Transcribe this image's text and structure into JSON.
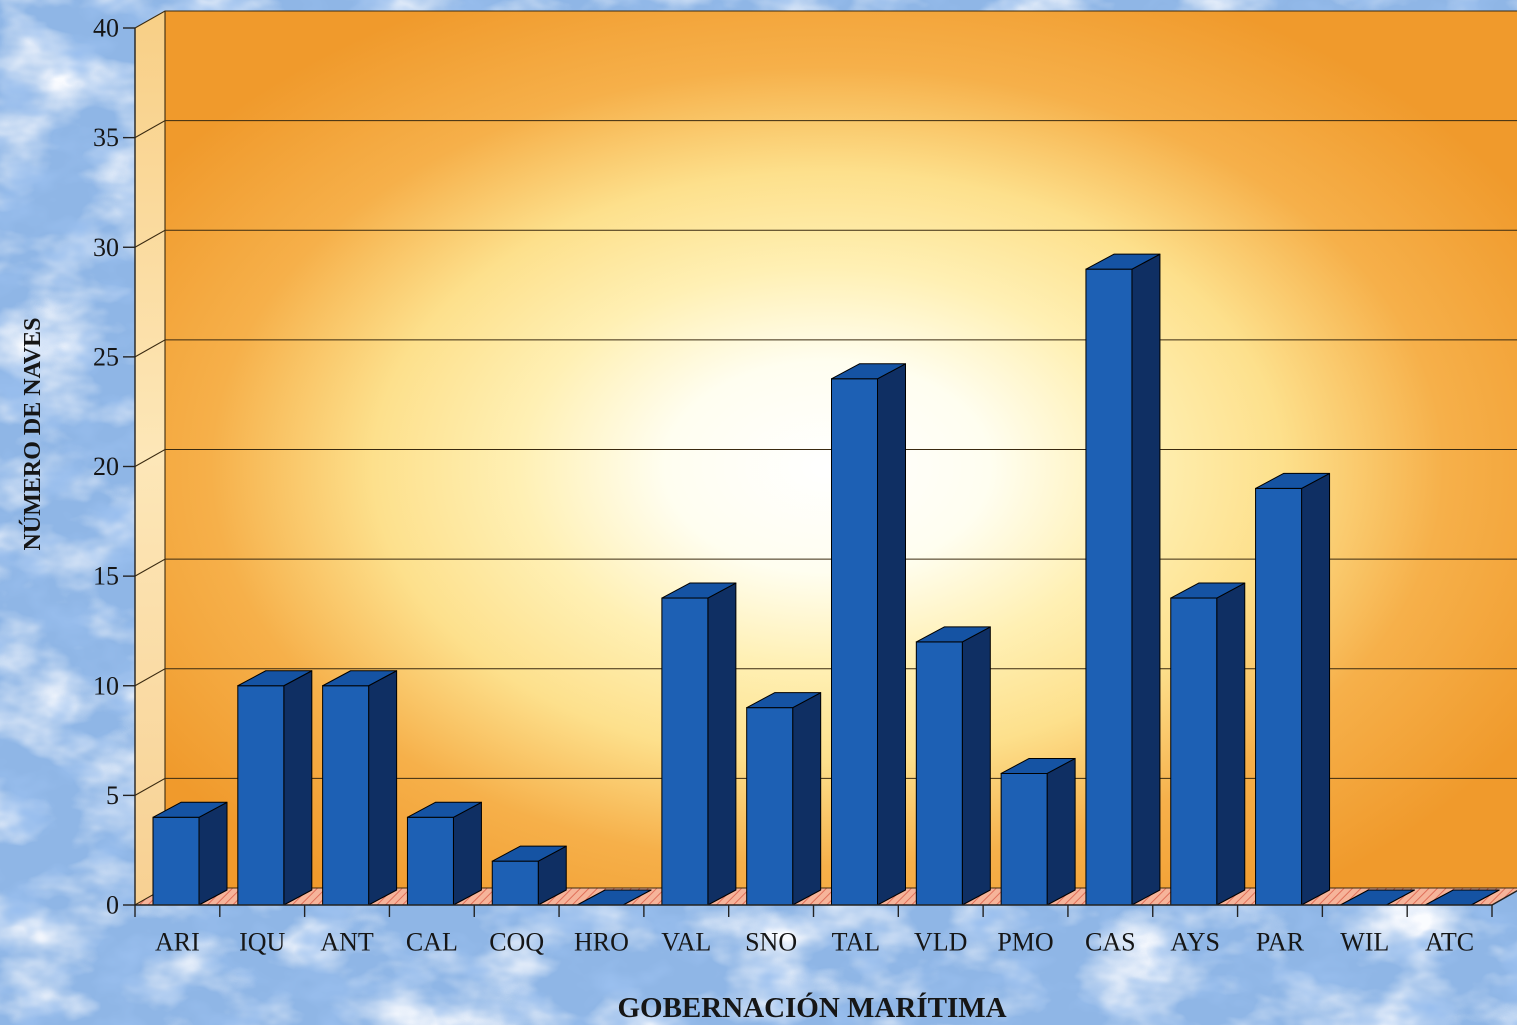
{
  "chart_data": {
    "type": "bar",
    "xlabel": "GOBERNACIÓN MARÍTIMA",
    "ylabel": "NÚMERO DE NAVES",
    "categories": [
      "ARI",
      "IQU",
      "ANT",
      "CAL",
      "COQ",
      "HRO",
      "VAL",
      "SNO",
      "TAL",
      "VLD",
      "PMO",
      "CAS",
      "AYS",
      "PAR",
      "WIL",
      "ATC"
    ],
    "values": [
      4,
      10,
      10,
      4,
      2,
      0,
      14,
      9,
      24,
      12,
      6,
      29,
      14,
      19,
      0,
      0
    ],
    "ylim": [
      0,
      40
    ],
    "yticks": [
      0,
      5,
      10,
      15,
      20,
      25,
      30,
      35,
      40
    ],
    "grid": true
  },
  "colors": {
    "background": "#8fb6e6",
    "bar_front": "#1d60b4",
    "bar_side": "#0f2f63",
    "bar_top": "#1553a3",
    "wall_center": "#ffffff",
    "wall_mid": "#fde08c",
    "wall_outer": "#f09a2c",
    "floor": "#f6b49a",
    "floor_hatch": "#e0705a"
  }
}
